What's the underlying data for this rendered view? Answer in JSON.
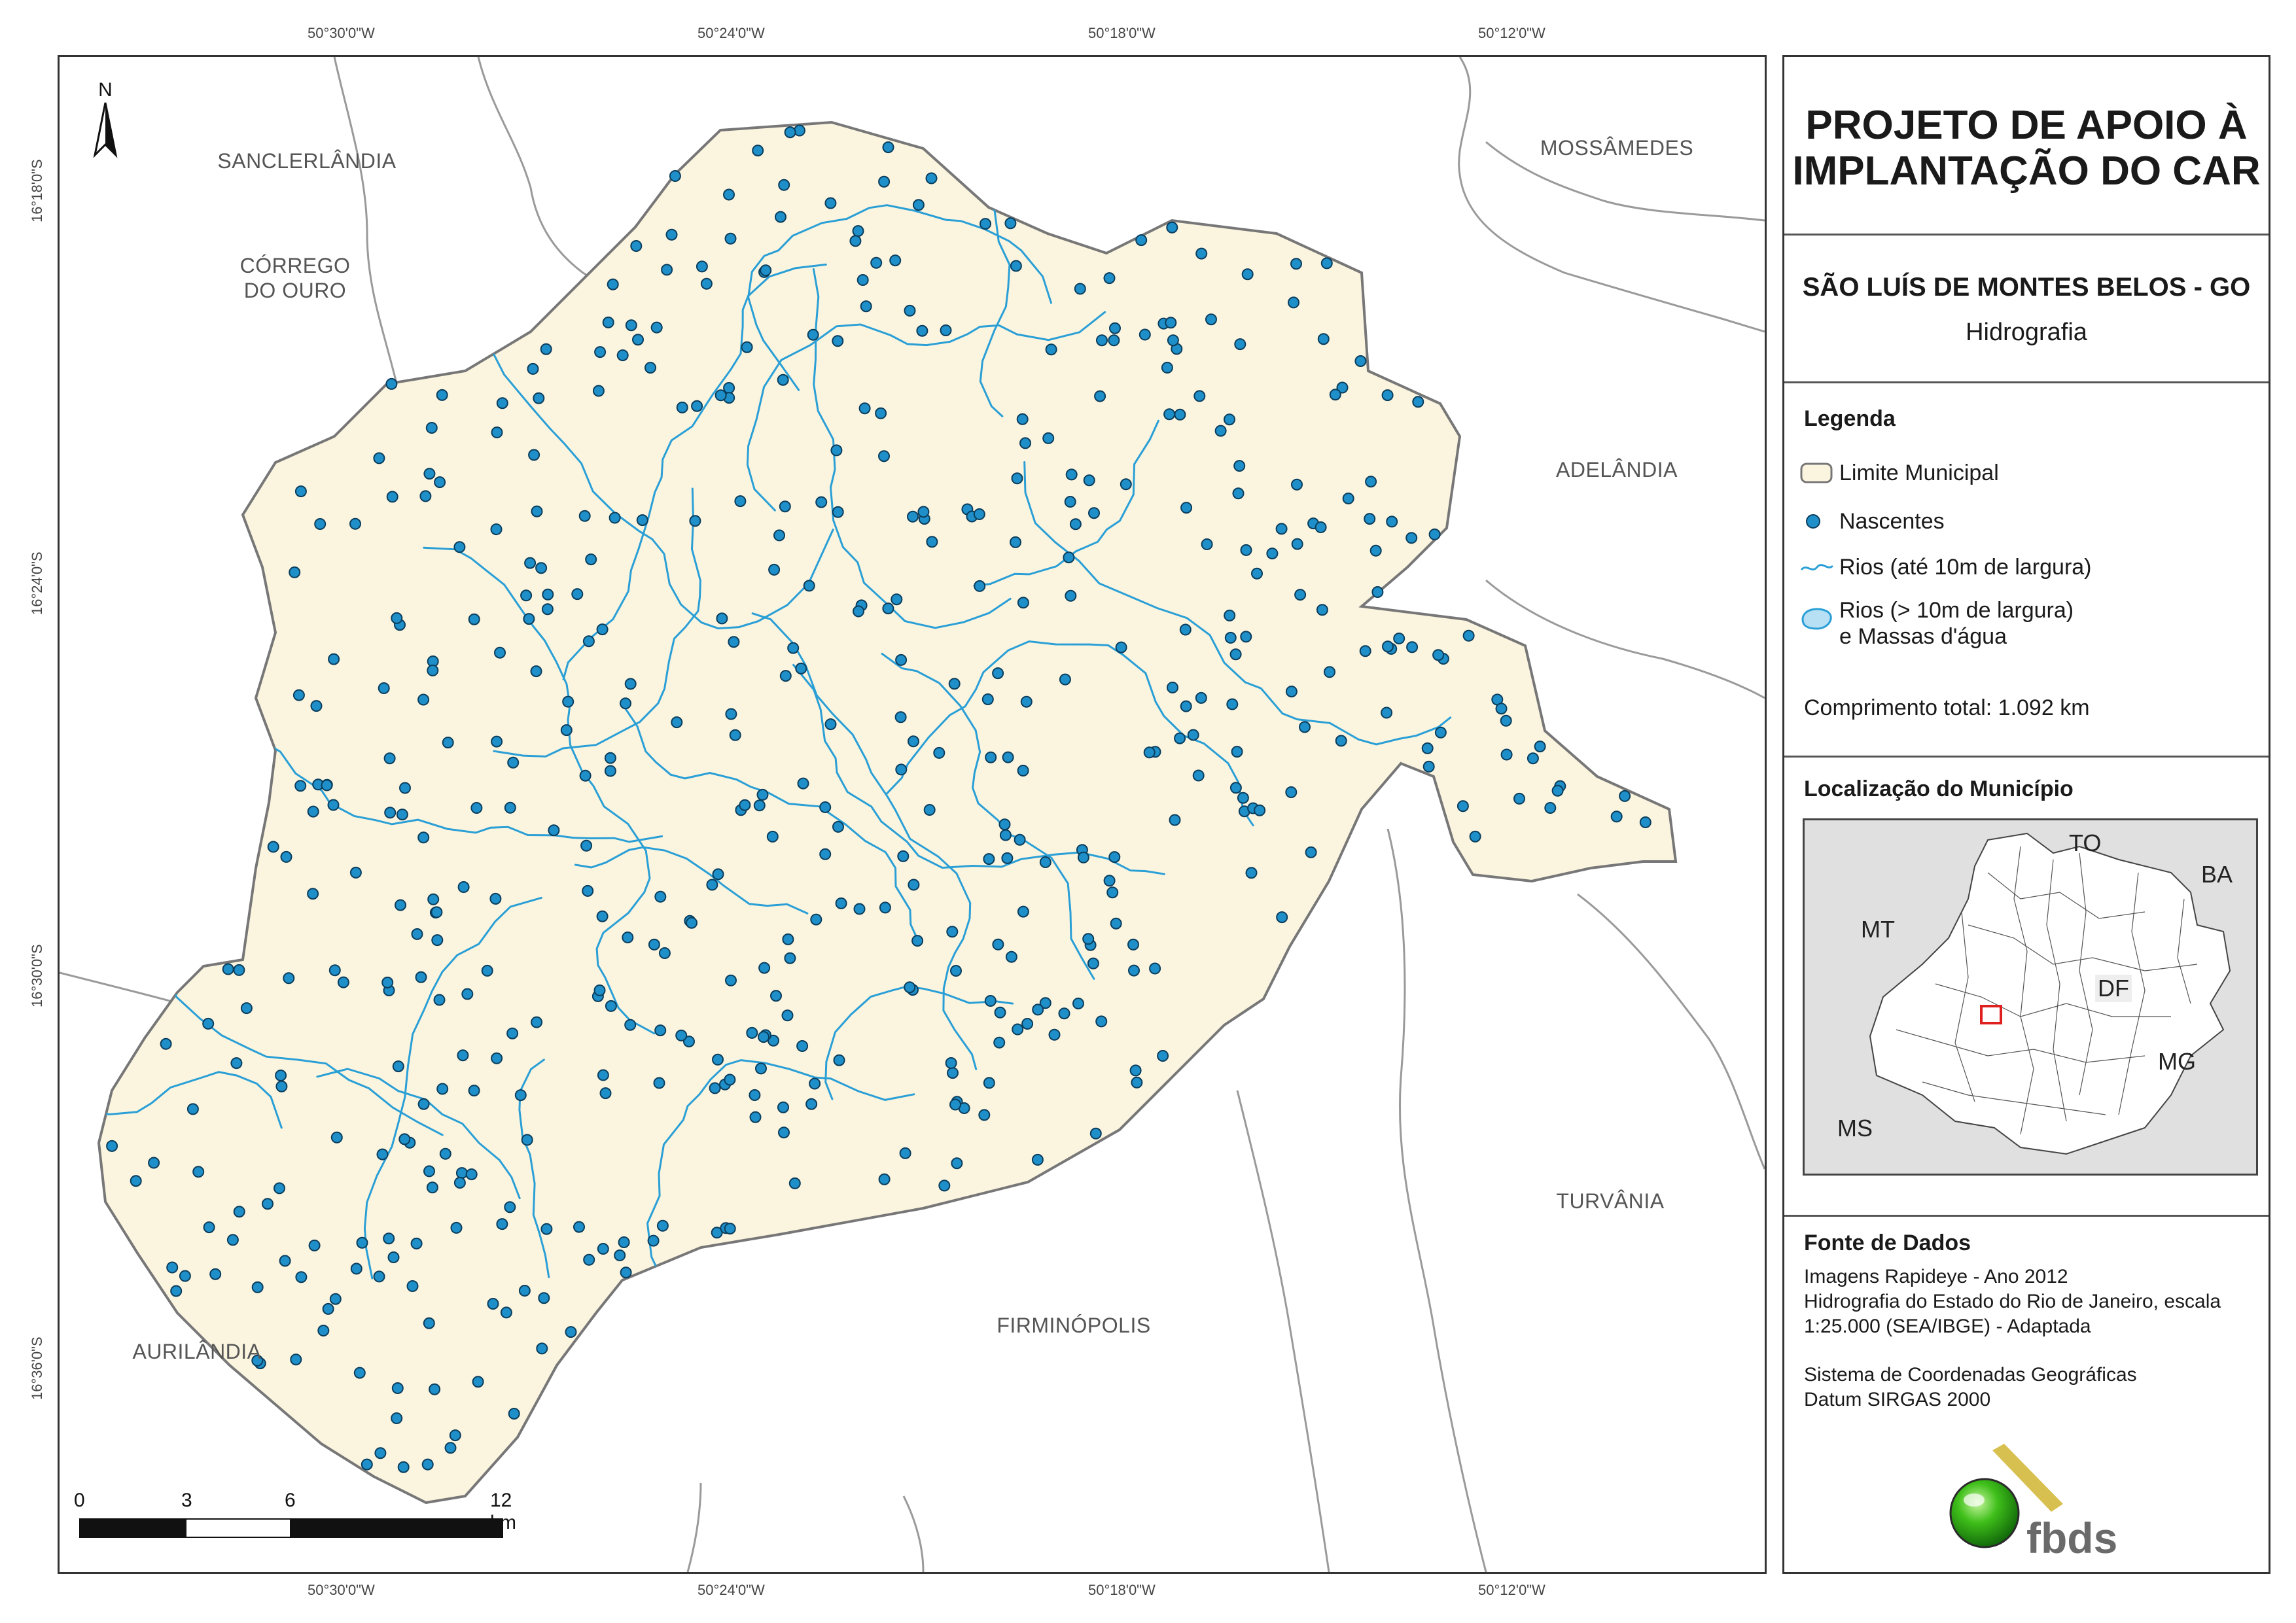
{
  "coords": {
    "top": [
      "50°30'0\"W",
      "50°24'0\"W",
      "50°18'0\"W",
      "50°12'0\"W"
    ],
    "bottom": [
      "50°30'0\"W",
      "50°24'0\"W",
      "50°18'0\"W",
      "50°12'0\"W"
    ],
    "left": [
      "16°18'0\"S",
      "16°24'0\"S",
      "16°30'0\"S",
      "16°36'0\"S"
    ]
  },
  "places": {
    "sanclerlandia": "SANCLERLÂNDIA",
    "corrego_l1": "CÓRREGO",
    "corrego_l2": "DO OURO",
    "mossamedes": "MOSSÂMEDES",
    "adelandia": "ADELÂNDIA",
    "turvania": "TURVÂNIA",
    "firminopolis": "FIRMINÓPOLIS",
    "aurilandia": "AURILÂNDIA"
  },
  "north_label": "N",
  "scale": {
    "labels": [
      "0",
      "3",
      "6",
      "12 km"
    ]
  },
  "panel": {
    "title_l1": "PROJETO DE APOIO À",
    "title_l2": "IMPLANTAÇÃO DO CAR",
    "municipio": "SÃO LUÍS DE MONTES BELOS - GO",
    "subtitulo": "Hidrografia",
    "legend_title": "Legenda",
    "legend": {
      "limite": "Limite Municipal",
      "nascentes": "Nascentes",
      "rios_ate": "Rios (até 10m de largura)",
      "rios_maior_l1": "Rios (> 10m de largura)",
      "rios_maior_l2": "e Massas d'água"
    },
    "comprimento": "Comprimento total: 1.092 km",
    "localizacao_title": "Localização do Município",
    "loc_labels": {
      "to": "TO",
      "ba": "BA",
      "mt": "MT",
      "df": "DF",
      "mg": "MG",
      "ms": "MS"
    },
    "fonte_title": "Fonte de Dados",
    "fonte_lines": [
      "Imagens Rapideye - Ano 2012",
      "Hidrografia do Estado do Rio de Janeiro, escala",
      "1:25.000 (SEA/IBGE) - Adaptada"
    ],
    "sistema_lines": [
      "Sistema de Coordenadas Geográficas",
      "Datum SIRGAS 2000"
    ],
    "logo_text": "fbds"
  },
  "colors": {
    "municipio_fill": "#fbf5e0",
    "rio": "#2a9fd6",
    "nascente": "#1e8fc8",
    "nascente_stroke": "#0b3d5c",
    "limite": "#777777",
    "vizinho": "#999999",
    "destaque": "#e02020"
  }
}
